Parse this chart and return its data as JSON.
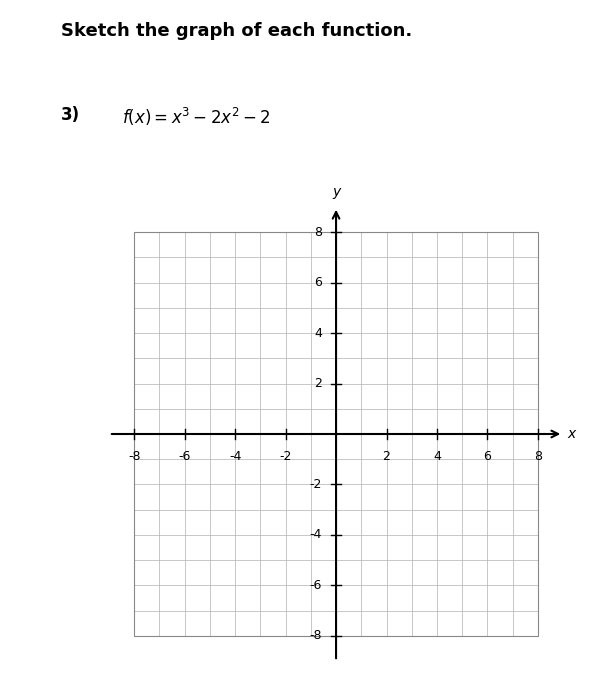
{
  "title_bold": "Sketch the graph of each function.",
  "problem_label": "3)",
  "function_latex": "$f(x) = x^3 - 2x^2 - 2$",
  "xlim": [
    -8,
    8
  ],
  "ylim": [
    -8,
    8
  ],
  "xtick_labels": [
    -8,
    -6,
    -4,
    -2,
    2,
    4,
    6,
    8
  ],
  "ytick_labels": [
    -8,
    -6,
    -4,
    -2,
    2,
    4,
    6,
    8
  ],
  "grid_color": "#b0b0b0",
  "axis_color": "#000000",
  "box_color": "#888888",
  "background_color": "#ffffff",
  "xlabel": "x",
  "ylabel": "y",
  "figsize": [
    6.11,
    7.0
  ],
  "dpi": 100,
  "title_fontsize": 13,
  "label_fontsize": 12,
  "tick_fontsize": 9
}
